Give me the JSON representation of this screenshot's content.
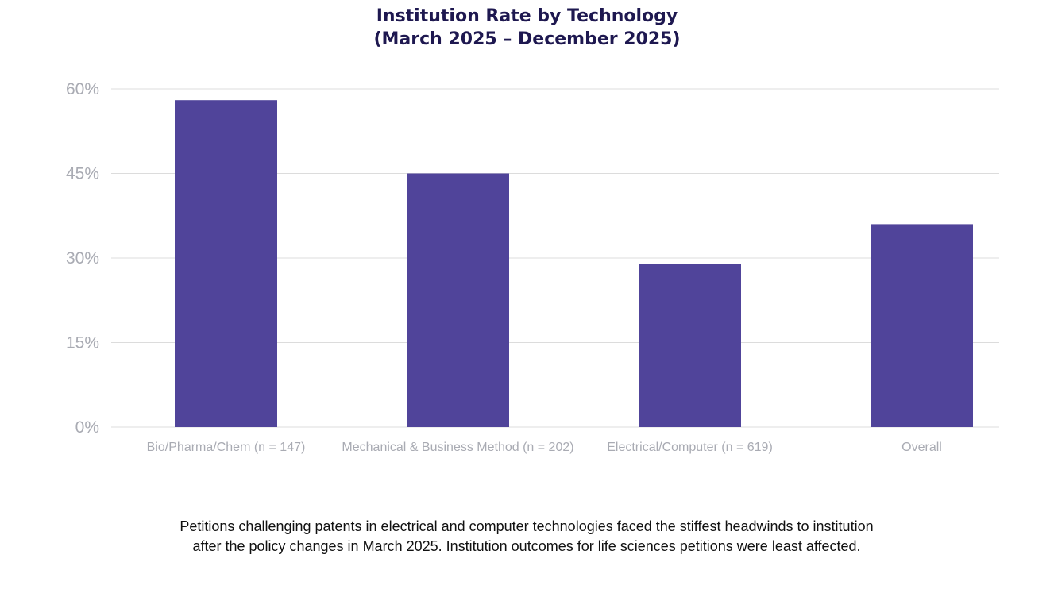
{
  "chart_data": {
    "type": "bar",
    "title": "Institution Rate by Technology",
    "subtitle": "(March 2025 – December 2025)",
    "categories": [
      "Bio/Pharma/Chem (n = 147)",
      "Mechanical & Business Method (n = 202)",
      "Electrical/Computer (n = 619)",
      "Overall"
    ],
    "values": [
      58,
      45,
      29,
      36
    ],
    "value_unit": "%",
    "ylim": [
      0,
      60
    ],
    "yticks": [
      0,
      15,
      30,
      45,
      60
    ],
    "ytick_labels": [
      "0%",
      "15%",
      "30%",
      "45%",
      "60%"
    ],
    "xlabel": "",
    "ylabel": "",
    "grid": true,
    "legend": "none",
    "bar_color": "#50449a"
  },
  "caption": "Petitions challenging patents in electrical and computer technologies faced the stiffest headwinds to institution after the policy changes in March 2025. Institution outcomes for life sciences petitions were least affected.",
  "colors": {
    "title": "#1e1850",
    "bar": "#50449a",
    "gridline": "#dcdcdc",
    "tick_label": "#a9abb3",
    "caption": "#111111"
  }
}
